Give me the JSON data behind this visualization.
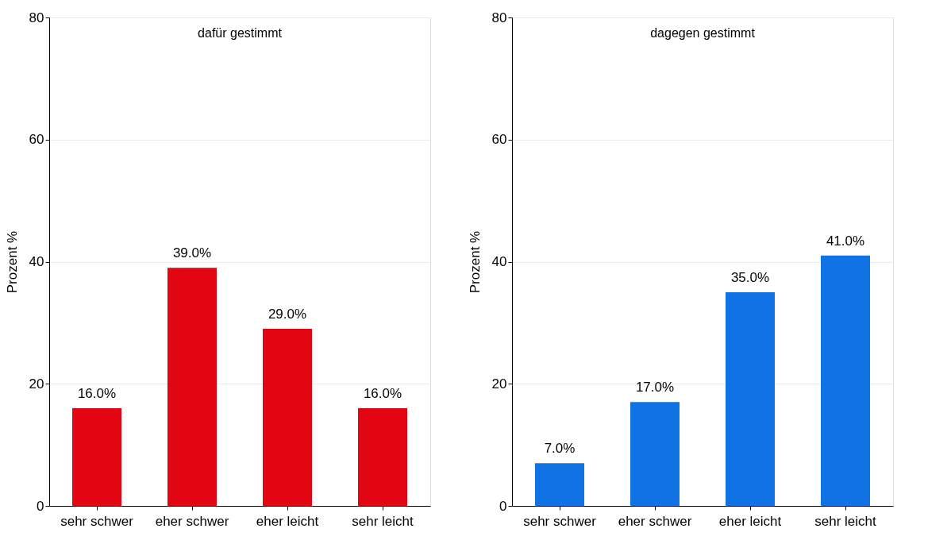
{
  "chart_data": [
    {
      "type": "bar",
      "title": "dafür gestimmt",
      "ylabel": "Prozent %",
      "categories": [
        "sehr schwer",
        "eher schwer",
        "eher leicht",
        "sehr leicht"
      ],
      "series": [
        {
          "color": "#e20613",
          "values": [
            16.0,
            39.0,
            29.0,
            16.0
          ],
          "value_labels": [
            "16.0%",
            "39.0%",
            "29.0%",
            "16.0%"
          ]
        }
      ],
      "ylim": [
        0,
        80
      ],
      "yticks": [
        0,
        20,
        40,
        60,
        80
      ],
      "grid": "y"
    },
    {
      "type": "bar",
      "title": "dagegen gestimmt",
      "ylabel": "Prozent %",
      "categories": [
        "sehr schwer",
        "eher schwer",
        "eher leicht",
        "sehr leicht"
      ],
      "series": [
        {
          "color": "#0f73e3",
          "values": [
            7.0,
            17.0,
            35.0,
            41.0
          ],
          "value_labels": [
            "7.0%",
            "17.0%",
            "35.0%",
            "41.0%"
          ]
        }
      ],
      "ylim": [
        0,
        80
      ],
      "yticks": [
        0,
        20,
        40,
        60,
        80
      ],
      "grid": "y"
    }
  ]
}
